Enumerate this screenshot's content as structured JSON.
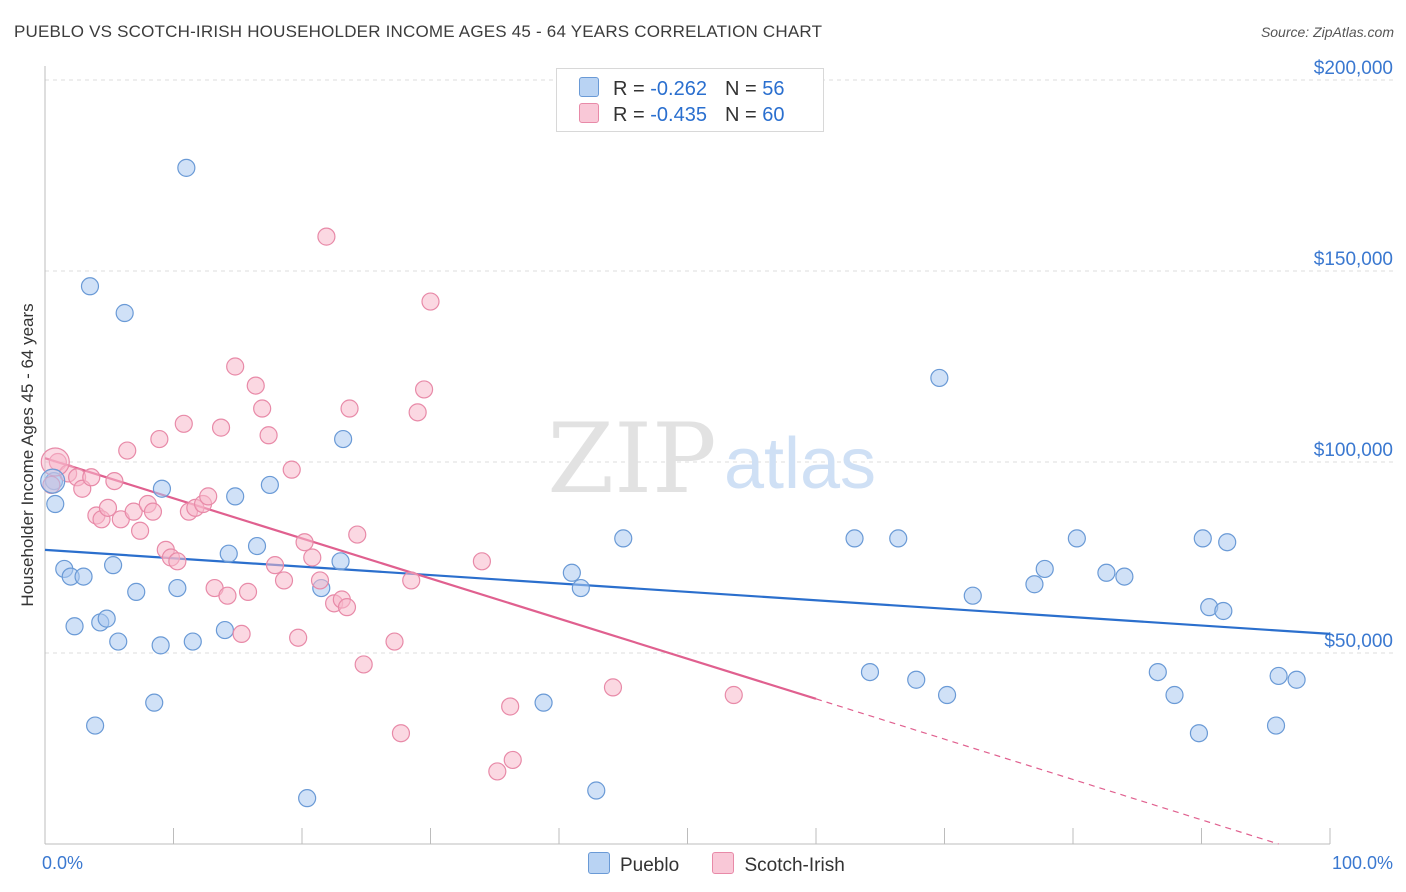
{
  "title": "PUEBLO VS SCOTCH-IRISH HOUSEHOLDER INCOME AGES 45 - 64 YEARS CORRELATION CHART",
  "source": "Source: ZipAtlas.com",
  "watermark": {
    "zip": "ZIP",
    "atlas": "atlas"
  },
  "legend": {
    "pueblo": {
      "r_label": "R = ",
      "r_value": "-0.262",
      "n_label": "N = ",
      "n_value": "56"
    },
    "scotch": {
      "r_label": "R = ",
      "r_value": "-0.435",
      "n_label": "N = ",
      "n_value": "60"
    }
  },
  "bottom_legend": {
    "pueblo": "Pueblo",
    "scotch": "Scotch-Irish"
  },
  "colors": {
    "pueblo_fill": "#a9c8f0",
    "pueblo_stroke": "#6a9ad6",
    "pueblo_line": "#2b6fcd",
    "scotch_fill": "#f7b8cb",
    "scotch_stroke": "#e88aa8",
    "scotch_line": "#e0608f",
    "axis_value": "#3a78d0",
    "grid": "#dcdcdc"
  },
  "chart_data": {
    "type": "scatter",
    "xlabel": "",
    "ylabel": "Householder Income Ages 45 - 64 years",
    "xlim": [
      0,
      100
    ],
    "ylim": [
      0,
      205000
    ],
    "x_tick_labels": [
      "0.0%",
      "100.0%"
    ],
    "y_ticks": [
      {
        "value": 50000,
        "label": "$50,000"
      },
      {
        "value": 100000,
        "label": "$100,000"
      },
      {
        "value": 150000,
        "label": "$150,000"
      },
      {
        "value": 200000,
        "label": "$200,000"
      }
    ],
    "grid": true,
    "series": [
      {
        "name": "Pueblo",
        "trend": {
          "x0": 0,
          "y0": 77000,
          "x1": 100,
          "y1": 55000
        },
        "points": [
          [
            0.7,
            95000
          ],
          [
            0.8,
            89000
          ],
          [
            1.5,
            72000
          ],
          [
            2.0,
            70000
          ],
          [
            2.3,
            57000
          ],
          [
            3.0,
            70000
          ],
          [
            3.5,
            146000
          ],
          [
            3.9,
            31000
          ],
          [
            4.3,
            58000
          ],
          [
            4.8,
            59000
          ],
          [
            5.3,
            73000
          ],
          [
            5.7,
            53000
          ],
          [
            6.2,
            139000
          ],
          [
            7.1,
            66000
          ],
          [
            8.5,
            37000
          ],
          [
            9.0,
            52000
          ],
          [
            9.1,
            93000
          ],
          [
            10.3,
            67000
          ],
          [
            11.0,
            177000
          ],
          [
            11.5,
            53000
          ],
          [
            14.0,
            56000
          ],
          [
            14.3,
            76000
          ],
          [
            14.8,
            91000
          ],
          [
            16.5,
            78000
          ],
          [
            17.5,
            94000
          ],
          [
            20.4,
            12000
          ],
          [
            21.5,
            67000
          ],
          [
            23.0,
            74000
          ],
          [
            23.2,
            106000
          ],
          [
            41.0,
            71000
          ],
          [
            41.7,
            67000
          ],
          [
            42.9,
            14000
          ],
          [
            45.0,
            80000
          ],
          [
            38.8,
            37000
          ],
          [
            63.0,
            80000
          ],
          [
            64.2,
            45000
          ],
          [
            66.4,
            80000
          ],
          [
            67.8,
            43000
          ],
          [
            69.6,
            122000
          ],
          [
            70.2,
            39000
          ],
          [
            72.2,
            65000
          ],
          [
            77.0,
            68000
          ],
          [
            77.8,
            72000
          ],
          [
            80.3,
            80000
          ],
          [
            82.6,
            71000
          ],
          [
            84.0,
            70000
          ],
          [
            86.6,
            45000
          ],
          [
            87.9,
            39000
          ],
          [
            89.8,
            29000
          ],
          [
            90.1,
            80000
          ],
          [
            90.6,
            62000
          ],
          [
            91.7,
            61000
          ],
          [
            92.0,
            79000
          ],
          [
            95.8,
            31000
          ],
          [
            96.0,
            44000
          ],
          [
            97.4,
            43000
          ]
        ]
      },
      {
        "name": "Scotch-Irish",
        "trend": {
          "x0": 0,
          "y0": 101000,
          "x1": 60,
          "y1": 38000
        },
        "trend_dashed_to": {
          "x": 96,
          "y": 0
        },
        "points": [
          [
            0.5,
            94000
          ],
          [
            1.0,
            100000
          ],
          [
            1.8,
            97000
          ],
          [
            2.5,
            96000
          ],
          [
            2.9,
            93000
          ],
          [
            3.6,
            96000
          ],
          [
            4.0,
            86000
          ],
          [
            4.4,
            85000
          ],
          [
            4.9,
            88000
          ],
          [
            5.4,
            95000
          ],
          [
            5.9,
            85000
          ],
          [
            6.4,
            103000
          ],
          [
            6.9,
            87000
          ],
          [
            7.4,
            82000
          ],
          [
            8.0,
            89000
          ],
          [
            8.4,
            87000
          ],
          [
            8.9,
            106000
          ],
          [
            9.4,
            77000
          ],
          [
            9.8,
            75000
          ],
          [
            10.3,
            74000
          ],
          [
            10.8,
            110000
          ],
          [
            11.2,
            87000
          ],
          [
            11.7,
            88000
          ],
          [
            12.3,
            89000
          ],
          [
            12.7,
            91000
          ],
          [
            13.2,
            67000
          ],
          [
            13.7,
            109000
          ],
          [
            14.2,
            65000
          ],
          [
            14.8,
            125000
          ],
          [
            15.3,
            55000
          ],
          [
            15.8,
            66000
          ],
          [
            16.4,
            120000
          ],
          [
            16.9,
            114000
          ],
          [
            17.4,
            107000
          ],
          [
            17.9,
            73000
          ],
          [
            18.6,
            69000
          ],
          [
            19.2,
            98000
          ],
          [
            19.7,
            54000
          ],
          [
            20.2,
            79000
          ],
          [
            20.8,
            75000
          ],
          [
            21.4,
            69000
          ],
          [
            21.9,
            159000
          ],
          [
            22.5,
            63000
          ],
          [
            23.1,
            64000
          ],
          [
            23.7,
            114000
          ],
          [
            24.3,
            81000
          ],
          [
            24.8,
            47000
          ],
          [
            27.2,
            53000
          ],
          [
            27.7,
            29000
          ],
          [
            28.5,
            69000
          ],
          [
            29.0,
            113000
          ],
          [
            29.5,
            119000
          ],
          [
            30.0,
            142000
          ],
          [
            34.0,
            74000
          ],
          [
            35.2,
            19000
          ],
          [
            36.2,
            36000
          ],
          [
            36.4,
            22000
          ],
          [
            44.2,
            41000
          ],
          [
            53.6,
            39000
          ],
          [
            23.5,
            62000
          ]
        ]
      }
    ]
  }
}
